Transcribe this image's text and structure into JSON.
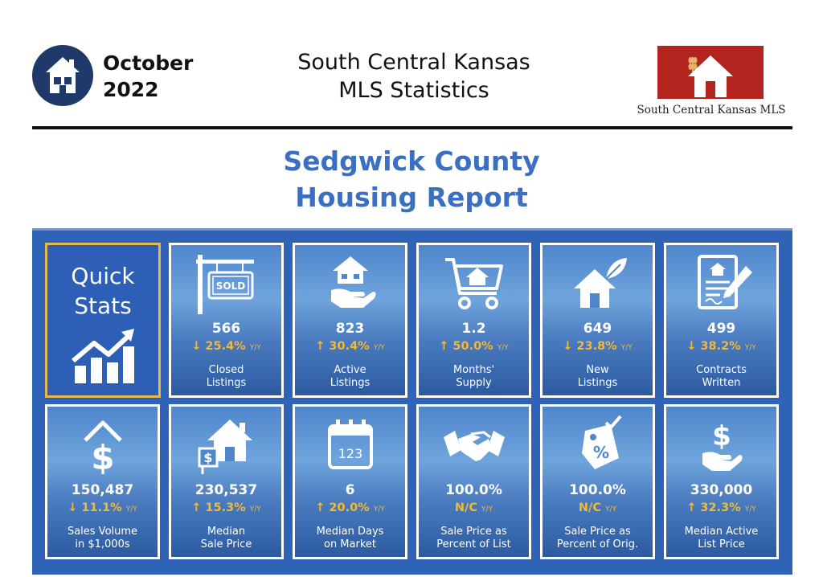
{
  "header": {
    "date_line1": "October",
    "date_line2": "2022",
    "title_line1": "South Central Kansas",
    "title_line2": "MLS Statistics",
    "logo_text": "South Central Kansas MLS"
  },
  "report": {
    "title_line1": "Sedgwick County",
    "title_line2": "Housing Report"
  },
  "quick_stats": {
    "label_line1": "Quick",
    "label_line2": "Stats"
  },
  "yy_label": "Y/Y",
  "colors": {
    "brand_navy": "#1f3a68",
    "title_blue": "#3a6fc4",
    "panel_blue": "#2f63b8",
    "change_gold": "#f1b83a",
    "logo_red": "#b3241f"
  },
  "tiles": [
    {
      "icon": "sold-sign-icon",
      "value": "566",
      "arrow": "↓",
      "change": "25.4%",
      "label_line1": "Closed",
      "label_line2": "Listings"
    },
    {
      "icon": "house-in-hand-icon",
      "value": "823",
      "arrow": "↑",
      "change": "30.4%",
      "label_line1": "Active",
      "label_line2": "Listings"
    },
    {
      "icon": "house-cart-icon",
      "value": "1.2",
      "arrow": "↑",
      "change": "50.0%",
      "label_line1": "Months'",
      "label_line2": "Supply"
    },
    {
      "icon": "new-house-leaf-icon",
      "value": "649",
      "arrow": "↓",
      "change": "23.8%",
      "label_line1": "New",
      "label_line2": "Listings"
    },
    {
      "icon": "contract-pen-icon",
      "value": "499",
      "arrow": "↓",
      "change": "38.2%",
      "label_line1": "Contracts",
      "label_line2": "Written"
    },
    {
      "icon": "house-dollar-icon",
      "value": "150,487",
      "arrow": "↓",
      "change": "11.1%",
      "label_line1": "Sales Volume",
      "label_line2": "in $1,000s"
    },
    {
      "icon": "house-price-sign-icon",
      "value": "230,537",
      "arrow": "↑",
      "change": "15.3%",
      "label_line1": "Median",
      "label_line2": "Sale Price"
    },
    {
      "icon": "calendar-icon",
      "value": "6",
      "arrow": "↑",
      "change": "20.0%",
      "label_line1": "Median Days",
      "label_line2": "on Market",
      "calendar_text": "123"
    },
    {
      "icon": "handshake-icon",
      "value": "100.0%",
      "arrow": "",
      "change": "N/C",
      "label_line1": "Sale Price as",
      "label_line2": "Percent of List"
    },
    {
      "icon": "percent-tag-icon",
      "value": "100.0%",
      "arrow": "",
      "change": "N/C",
      "label_line1": "Sale Price as",
      "label_line2": "Percent of Orig."
    },
    {
      "icon": "dollar-hand-icon",
      "value": "330,000",
      "arrow": "↑",
      "change": "32.3%",
      "label_line1": "Median Active",
      "label_line2": "List Price"
    }
  ]
}
